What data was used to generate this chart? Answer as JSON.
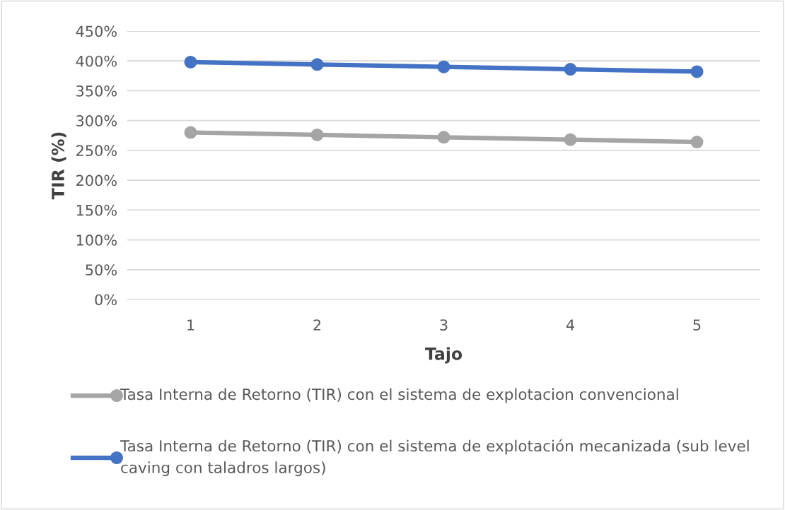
{
  "chart_data": {
    "type": "line",
    "xlabel": "Tajo",
    "ylabel": "TIR (%)",
    "categories": [
      "1",
      "2",
      "3",
      "4",
      "5"
    ],
    "series": [
      {
        "name": "Tasa Interna de Retorno (TIR) con el sistema de explotacion convencional",
        "color": "#a5a5a5",
        "values": [
          280,
          276,
          272,
          268,
          264
        ]
      },
      {
        "name": "Tasa Interna de Retorno (TIR) con el sistema de explotación mecanizada (sub level caving con taladros largos)",
        "color": "#4472c4",
        "values": [
          398,
          394,
          390,
          386,
          382
        ]
      }
    ],
    "ylim": [
      0,
      450
    ],
    "yticks": [
      {
        "value": 0,
        "label": "0%"
      },
      {
        "value": 50,
        "label": "50%"
      },
      {
        "value": 100,
        "label": "100%"
      },
      {
        "value": 150,
        "label": "150%"
      },
      {
        "value": 200,
        "label": "200%"
      },
      {
        "value": 250,
        "label": "250%"
      },
      {
        "value": 300,
        "label": "300%"
      },
      {
        "value": 350,
        "label": "350%"
      },
      {
        "value": 400,
        "label": "400%"
      },
      {
        "value": 450,
        "label": "450%"
      }
    ],
    "grid": "y",
    "legend": "bottom",
    "marker": "circle",
    "line_style": "solid"
  }
}
